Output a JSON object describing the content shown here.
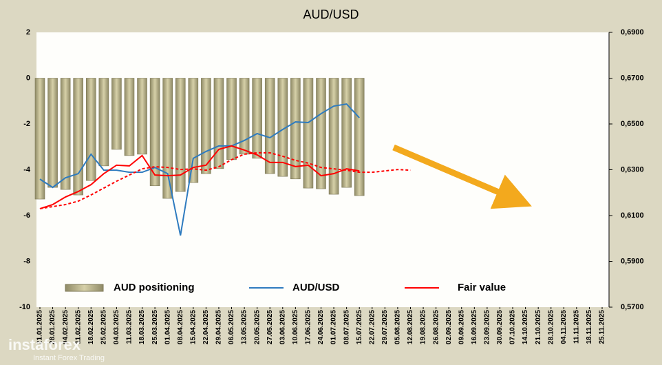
{
  "chart_data": {
    "type": "combo",
    "title": "AUD/USD",
    "categories": [
      "21.01.2025",
      "28.01.2025",
      "04.02.2025",
      "11.02.2025",
      "18.02.2025",
      "25.02.2025",
      "04.03.2025",
      "11.03.2025",
      "18.03.2025",
      "25.03.2025",
      "01.04.2025",
      "08.04.2025",
      "15.04.2025",
      "22.04.2025",
      "29.04.2025",
      "06.05.2025",
      "13.05.2025",
      "20.05.2025",
      "27.05.2025",
      "03.06.2025",
      "10.06.2025",
      "17.06.2025",
      "24.06.2025",
      "01.07.2025",
      "08.07.2025",
      "15.07.2025",
      "22.07.2025",
      "29.07.2025",
      "05.08.2025",
      "12.08.2025",
      "19.08.2025",
      "26.08.2025",
      "02.09.2025",
      "09.09.2025",
      "16.09.2025",
      "23.09.2025",
      "30.09.2025",
      "07.10.2025",
      "14.10.2025",
      "21.10.2025",
      "28.10.2025",
      "04.11.2025",
      "11.11.2025",
      "18.11.2025",
      "25.11.2025"
    ],
    "series": [
      {
        "name": "AUD positioning",
        "kind": "bar",
        "color": "#b8b088",
        "values": [
          -5.28,
          -4.77,
          -4.86,
          -5.1,
          -4.47,
          -3.83,
          -3.11,
          -3.38,
          -3.32,
          -4.7,
          -5.25,
          -4.95,
          -4.56,
          -4.17,
          -3.95,
          -3.56,
          -3.32,
          -3.5,
          -4.17,
          -4.29,
          -4.4,
          -4.8,
          -4.83,
          -5.07,
          -4.77,
          -5.13,
          null,
          null,
          null,
          null,
          null,
          null,
          null,
          null,
          null,
          null,
          null,
          null,
          null,
          null,
          null,
          null,
          null,
          null,
          null
        ]
      },
      {
        "name": "AUD/USD",
        "kind": "line",
        "axis": "y2",
        "color": "#2e7bbf",
        "values": [
          0.6259,
          0.6223,
          0.6265,
          0.6283,
          0.6368,
          0.6298,
          0.6298,
          0.6289,
          0.6289,
          0.631,
          0.6283,
          0.6013,
          0.635,
          0.638,
          0.6404,
          0.6404,
          0.6428,
          0.6458,
          0.644,
          0.6476,
          0.6509,
          0.6506,
          0.6545,
          0.6578,
          0.6587,
          0.6527,
          null,
          null,
          null,
          null,
          null,
          null,
          null,
          null,
          null,
          null,
          null,
          null,
          null,
          null,
          null,
          null,
          null,
          null,
          null
        ]
      },
      {
        "name": "Fair value",
        "kind": "line",
        "axis": "y2",
        "color": "#ff0000",
        "values": [
          0.613,
          0.6148,
          0.6181,
          0.6205,
          0.6235,
          0.6283,
          0.632,
          0.6317,
          0.6362,
          0.6277,
          0.6274,
          0.6277,
          0.631,
          0.632,
          0.6389,
          0.6404,
          0.6386,
          0.6365,
          0.6332,
          0.6332,
          0.6314,
          0.632,
          0.6274,
          0.6283,
          0.6304,
          0.6295,
          null,
          null,
          null,
          null,
          null,
          null,
          null,
          null,
          null,
          null,
          null,
          null,
          null,
          null,
          null,
          null,
          null,
          null,
          null
        ]
      },
      {
        "kind": "line",
        "axis": "y2",
        "color": "#ff0000",
        "dashed": true,
        "values": [
          0.613,
          0.6139,
          0.6148,
          0.6163,
          0.619,
          0.622,
          0.625,
          0.6277,
          0.6304,
          0.6313,
          0.631,
          0.6301,
          0.6304,
          0.6298,
          0.6313,
          0.6344,
          0.6368,
          0.6374,
          0.6374,
          0.6359,
          0.6341,
          0.6329,
          0.631,
          0.6304,
          0.6298,
          0.6289,
          0.6289,
          0.6295,
          0.6301,
          0.6298,
          null,
          null,
          null,
          null,
          null,
          null,
          null,
          null,
          null,
          null,
          null,
          null,
          null,
          null,
          null
        ]
      }
    ],
    "ylim": [
      -10,
      2
    ],
    "yticks": [
      -10,
      -8,
      -6,
      -4,
      -2,
      0,
      2
    ],
    "y2lim": [
      0.57,
      0.69
    ],
    "y2ticks": [
      {
        "value": 0.57,
        "label": "0,5700"
      },
      {
        "value": 0.59,
        "label": "0,5900"
      },
      {
        "value": 0.61,
        "label": "0,6100"
      },
      {
        "value": 0.63,
        "label": "0,6300"
      },
      {
        "value": 0.65,
        "label": "0,6500"
      },
      {
        "value": 0.67,
        "label": "0,6700"
      },
      {
        "value": 0.69,
        "label": "0,6900"
      }
    ]
  },
  "watermark": {
    "brand": "instaforex",
    "tagline": "Instant Forex Trading"
  }
}
